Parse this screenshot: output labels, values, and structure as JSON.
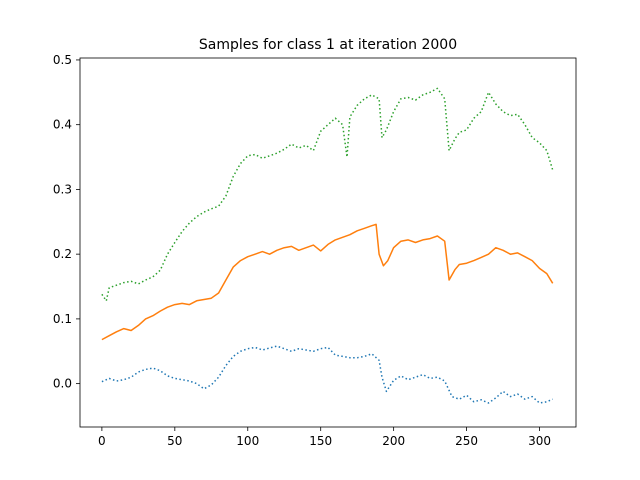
{
  "chart_data": {
    "type": "line",
    "title": "Samples for class 1 at iteration 2000",
    "xlabel": "",
    "ylabel": "",
    "xlim": [
      -15,
      325
    ],
    "ylim": [
      -0.067,
      0.503
    ],
    "x_ticks": [
      0,
      50,
      100,
      150,
      200,
      250,
      300
    ],
    "y_ticks": [
      0.0,
      0.1,
      0.2,
      0.3,
      0.4,
      0.5
    ],
    "y_tick_labels": [
      "0.0",
      "0.1",
      "0.2",
      "0.3",
      "0.4",
      "0.5"
    ],
    "grid": false,
    "legend": "none",
    "series": [
      {
        "color": "#1f77b4",
        "style": "dotted",
        "points": [
          [
            0,
            0.003
          ],
          [
            5,
            0.008
          ],
          [
            10,
            0.004
          ],
          [
            15,
            0.006
          ],
          [
            20,
            0.01
          ],
          [
            25,
            0.018
          ],
          [
            30,
            0.022
          ],
          [
            35,
            0.024
          ],
          [
            40,
            0.02
          ],
          [
            45,
            0.012
          ],
          [
            50,
            0.008
          ],
          [
            55,
            0.006
          ],
          [
            60,
            0.004
          ],
          [
            65,
            0.0
          ],
          [
            70,
            -0.008
          ],
          [
            75,
            -0.002
          ],
          [
            80,
            0.01
          ],
          [
            85,
            0.028
          ],
          [
            90,
            0.042
          ],
          [
            95,
            0.05
          ],
          [
            100,
            0.054
          ],
          [
            105,
            0.056
          ],
          [
            110,
            0.052
          ],
          [
            115,
            0.055
          ],
          [
            120,
            0.058
          ],
          [
            125,
            0.054
          ],
          [
            130,
            0.05
          ],
          [
            135,
            0.054
          ],
          [
            140,
            0.052
          ],
          [
            145,
            0.05
          ],
          [
            150,
            0.054
          ],
          [
            155,
            0.056
          ],
          [
            160,
            0.044
          ],
          [
            165,
            0.042
          ],
          [
            170,
            0.04
          ],
          [
            175,
            0.04
          ],
          [
            180,
            0.042
          ],
          [
            185,
            0.046
          ],
          [
            190,
            0.036
          ],
          [
            192,
            0.01
          ],
          [
            195,
            -0.012
          ],
          [
            200,
            0.005
          ],
          [
            205,
            0.012
          ],
          [
            210,
            0.006
          ],
          [
            215,
            0.01
          ],
          [
            220,
            0.014
          ],
          [
            225,
            0.008
          ],
          [
            230,
            0.01
          ],
          [
            235,
            0.004
          ],
          [
            240,
            -0.02
          ],
          [
            245,
            -0.024
          ],
          [
            250,
            -0.018
          ],
          [
            255,
            -0.028
          ],
          [
            260,
            -0.025
          ],
          [
            265,
            -0.03
          ],
          [
            270,
            -0.022
          ],
          [
            275,
            -0.012
          ],
          [
            280,
            -0.02
          ],
          [
            285,
            -0.016
          ],
          [
            290,
            -0.024
          ],
          [
            295,
            -0.02
          ],
          [
            300,
            -0.03
          ],
          [
            305,
            -0.028
          ],
          [
            309,
            -0.024
          ]
        ]
      },
      {
        "color": "#ff7f0e",
        "style": "solid",
        "points": [
          [
            0,
            0.068
          ],
          [
            5,
            0.074
          ],
          [
            10,
            0.08
          ],
          [
            15,
            0.085
          ],
          [
            20,
            0.082
          ],
          [
            25,
            0.09
          ],
          [
            30,
            0.1
          ],
          [
            35,
            0.105
          ],
          [
            40,
            0.112
          ],
          [
            45,
            0.118
          ],
          [
            50,
            0.122
          ],
          [
            55,
            0.124
          ],
          [
            60,
            0.122
          ],
          [
            65,
            0.128
          ],
          [
            70,
            0.13
          ],
          [
            75,
            0.132
          ],
          [
            80,
            0.14
          ],
          [
            85,
            0.16
          ],
          [
            90,
            0.18
          ],
          [
            95,
            0.19
          ],
          [
            100,
            0.196
          ],
          [
            105,
            0.2
          ],
          [
            110,
            0.204
          ],
          [
            115,
            0.2
          ],
          [
            120,
            0.206
          ],
          [
            125,
            0.21
          ],
          [
            130,
            0.212
          ],
          [
            135,
            0.206
          ],
          [
            140,
            0.21
          ],
          [
            145,
            0.214
          ],
          [
            150,
            0.205
          ],
          [
            155,
            0.215
          ],
          [
            160,
            0.222
          ],
          [
            165,
            0.226
          ],
          [
            170,
            0.23
          ],
          [
            175,
            0.236
          ],
          [
            180,
            0.24
          ],
          [
            185,
            0.244
          ],
          [
            188,
            0.246
          ],
          [
            190,
            0.2
          ],
          [
            193,
            0.182
          ],
          [
            196,
            0.19
          ],
          [
            200,
            0.21
          ],
          [
            205,
            0.22
          ],
          [
            210,
            0.222
          ],
          [
            215,
            0.218
          ],
          [
            220,
            0.222
          ],
          [
            225,
            0.224
          ],
          [
            230,
            0.228
          ],
          [
            235,
            0.22
          ],
          [
            238,
            0.16
          ],
          [
            242,
            0.176
          ],
          [
            245,
            0.184
          ],
          [
            250,
            0.186
          ],
          [
            255,
            0.19
          ],
          [
            260,
            0.195
          ],
          [
            265,
            0.2
          ],
          [
            270,
            0.21
          ],
          [
            275,
            0.206
          ],
          [
            280,
            0.2
          ],
          [
            285,
            0.202
          ],
          [
            290,
            0.196
          ],
          [
            295,
            0.19
          ],
          [
            300,
            0.178
          ],
          [
            305,
            0.17
          ],
          [
            309,
            0.155
          ]
        ]
      },
      {
        "color": "#2ca02c",
        "style": "dotted",
        "points": [
          [
            0,
            0.138
          ],
          [
            3,
            0.128
          ],
          [
            5,
            0.148
          ],
          [
            10,
            0.152
          ],
          [
            15,
            0.156
          ],
          [
            20,
            0.158
          ],
          [
            25,
            0.154
          ],
          [
            30,
            0.16
          ],
          [
            35,
            0.165
          ],
          [
            40,
            0.175
          ],
          [
            45,
            0.2
          ],
          [
            50,
            0.218
          ],
          [
            55,
            0.235
          ],
          [
            60,
            0.248
          ],
          [
            65,
            0.258
          ],
          [
            70,
            0.265
          ],
          [
            75,
            0.27
          ],
          [
            80,
            0.274
          ],
          [
            85,
            0.29
          ],
          [
            90,
            0.32
          ],
          [
            95,
            0.34
          ],
          [
            100,
            0.352
          ],
          [
            105,
            0.354
          ],
          [
            110,
            0.348
          ],
          [
            115,
            0.352
          ],
          [
            120,
            0.356
          ],
          [
            125,
            0.362
          ],
          [
            130,
            0.37
          ],
          [
            135,
            0.364
          ],
          [
            140,
            0.368
          ],
          [
            145,
            0.36
          ],
          [
            150,
            0.39
          ],
          [
            155,
            0.4
          ],
          [
            160,
            0.41
          ],
          [
            165,
            0.4
          ],
          [
            168,
            0.35
          ],
          [
            170,
            0.412
          ],
          [
            175,
            0.43
          ],
          [
            180,
            0.44
          ],
          [
            185,
            0.446
          ],
          [
            190,
            0.44
          ],
          [
            192,
            0.38
          ],
          [
            195,
            0.392
          ],
          [
            200,
            0.42
          ],
          [
            205,
            0.44
          ],
          [
            210,
            0.442
          ],
          [
            215,
            0.438
          ],
          [
            220,
            0.446
          ],
          [
            225,
            0.45
          ],
          [
            230,
            0.456
          ],
          [
            235,
            0.44
          ],
          [
            238,
            0.36
          ],
          [
            242,
            0.378
          ],
          [
            245,
            0.388
          ],
          [
            250,
            0.392
          ],
          [
            255,
            0.41
          ],
          [
            260,
            0.42
          ],
          [
            265,
            0.45
          ],
          [
            270,
            0.432
          ],
          [
            275,
            0.42
          ],
          [
            280,
            0.414
          ],
          [
            285,
            0.416
          ],
          [
            290,
            0.4
          ],
          [
            295,
            0.38
          ],
          [
            300,
            0.372
          ],
          [
            305,
            0.36
          ],
          [
            309,
            0.33
          ]
        ]
      }
    ]
  }
}
